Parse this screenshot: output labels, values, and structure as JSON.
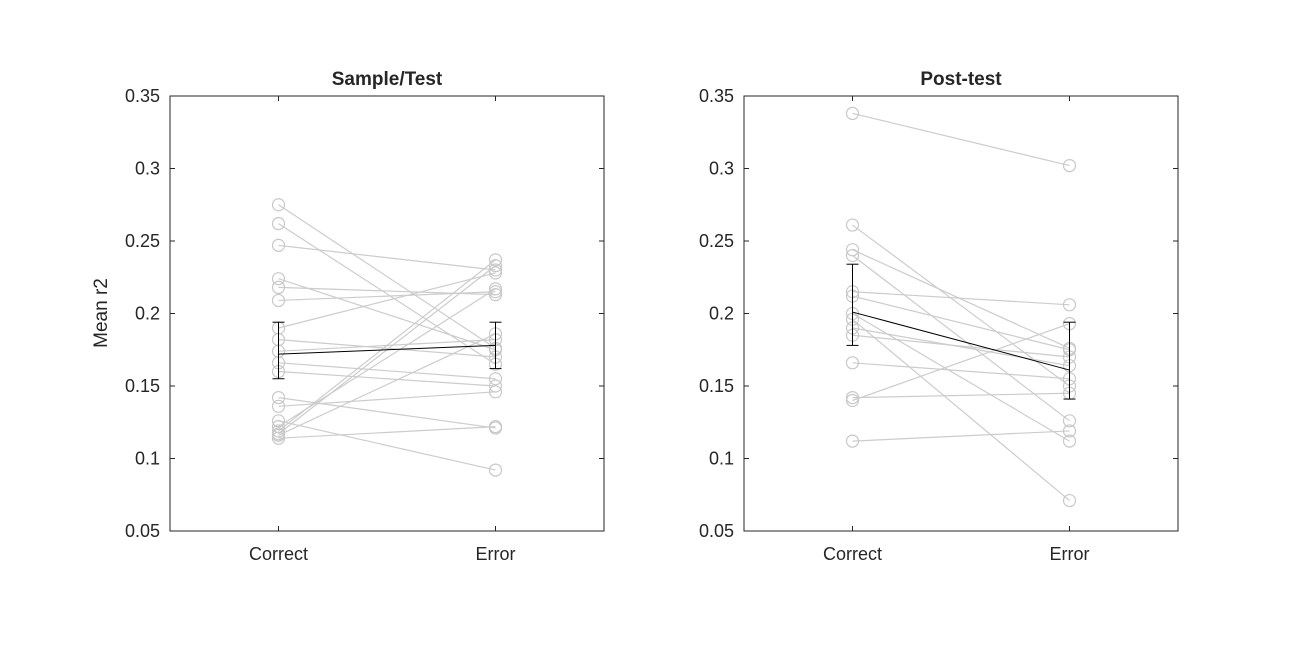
{
  "chart_data": [
    {
      "type": "scatter",
      "title": "Sample/Test",
      "ylabel": "Mean r2",
      "xlabel": "",
      "categories": [
        "Correct",
        "Error"
      ],
      "ylim": [
        0.05,
        0.35
      ],
      "yticks": [
        0.05,
        0.1,
        0.15,
        0.2,
        0.25,
        0.3,
        0.35
      ],
      "grid": false,
      "subjects": [
        [
          0.275,
          0.176
        ],
        [
          0.262,
          0.165
        ],
        [
          0.247,
          0.23
        ],
        [
          0.224,
          0.175
        ],
        [
          0.218,
          0.213
        ],
        [
          0.209,
          0.215
        ],
        [
          0.19,
          0.228
        ],
        [
          0.182,
          0.17
        ],
        [
          0.174,
          0.182
        ],
        [
          0.166,
          0.155
        ],
        [
          0.16,
          0.15
        ],
        [
          0.142,
          0.121
        ],
        [
          0.136,
          0.146
        ],
        [
          0.126,
          0.092
        ],
        [
          0.122,
          0.217
        ],
        [
          0.119,
          0.237
        ],
        [
          0.117,
          0.233
        ],
        [
          0.116,
          0.186
        ],
        [
          0.114,
          0.122
        ]
      ],
      "mean": [
        0.172,
        0.178
      ],
      "err_low": [
        0.155,
        0.162
      ],
      "err_high": [
        0.194,
        0.194
      ]
    },
    {
      "type": "scatter",
      "title": "Post-test",
      "ylabel": "",
      "xlabel": "",
      "categories": [
        "Correct",
        "Error"
      ],
      "ylim": [
        0.05,
        0.35
      ],
      "yticks": [
        0.05,
        0.1,
        0.15,
        0.2,
        0.25,
        0.3,
        0.35
      ],
      "grid": false,
      "subjects": [
        [
          0.338,
          0.302
        ],
        [
          0.261,
          0.15
        ],
        [
          0.244,
          0.176
        ],
        [
          0.24,
          0.126
        ],
        [
          0.215,
          0.206
        ],
        [
          0.212,
          0.175
        ],
        [
          0.2,
          0.112
        ],
        [
          0.196,
          0.071
        ],
        [
          0.19,
          0.164
        ],
        [
          0.185,
          0.17
        ],
        [
          0.166,
          0.155
        ],
        [
          0.142,
          0.145
        ],
        [
          0.14,
          0.193
        ],
        [
          0.112,
          0.119
        ]
      ],
      "mean": [
        0.201,
        0.161
      ],
      "err_low": [
        0.178,
        0.141
      ],
      "err_high": [
        0.234,
        0.194
      ]
    }
  ],
  "colors": {
    "subject_line": "#cccccc",
    "marker": "#c8c8c8",
    "mean": "#000000",
    "axis": "#262626"
  }
}
